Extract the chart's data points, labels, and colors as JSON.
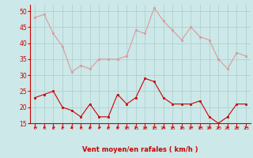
{
  "hours": [
    0,
    1,
    2,
    3,
    4,
    5,
    6,
    7,
    8,
    9,
    10,
    11,
    12,
    13,
    14,
    15,
    16,
    17,
    18,
    19,
    20,
    21,
    22,
    23
  ],
  "wind_avg": [
    23,
    24,
    25,
    20,
    19,
    17,
    21,
    17,
    17,
    24,
    21,
    23,
    29,
    28,
    23,
    21,
    21,
    21,
    22,
    17,
    15,
    17,
    21,
    21
  ],
  "wind_gust": [
    48,
    49,
    43,
    39,
    31,
    33,
    32,
    35,
    35,
    35,
    36,
    44,
    43,
    51,
    47,
    44,
    41,
    45,
    42,
    41,
    35,
    32,
    37,
    36
  ],
  "bg_color": "#cce8e8",
  "grid_color": "#aacccc",
  "avg_color": "#cc0000",
  "gust_color": "#dd9999",
  "xlabel": "Vent moyen/en rafales ( km/h )",
  "xlabel_color": "#cc0000",
  "tick_color": "#cc0000",
  "ymin": 15,
  "ymax": 52,
  "yticks": [
    15,
    20,
    25,
    30,
    35,
    40,
    45,
    50
  ]
}
